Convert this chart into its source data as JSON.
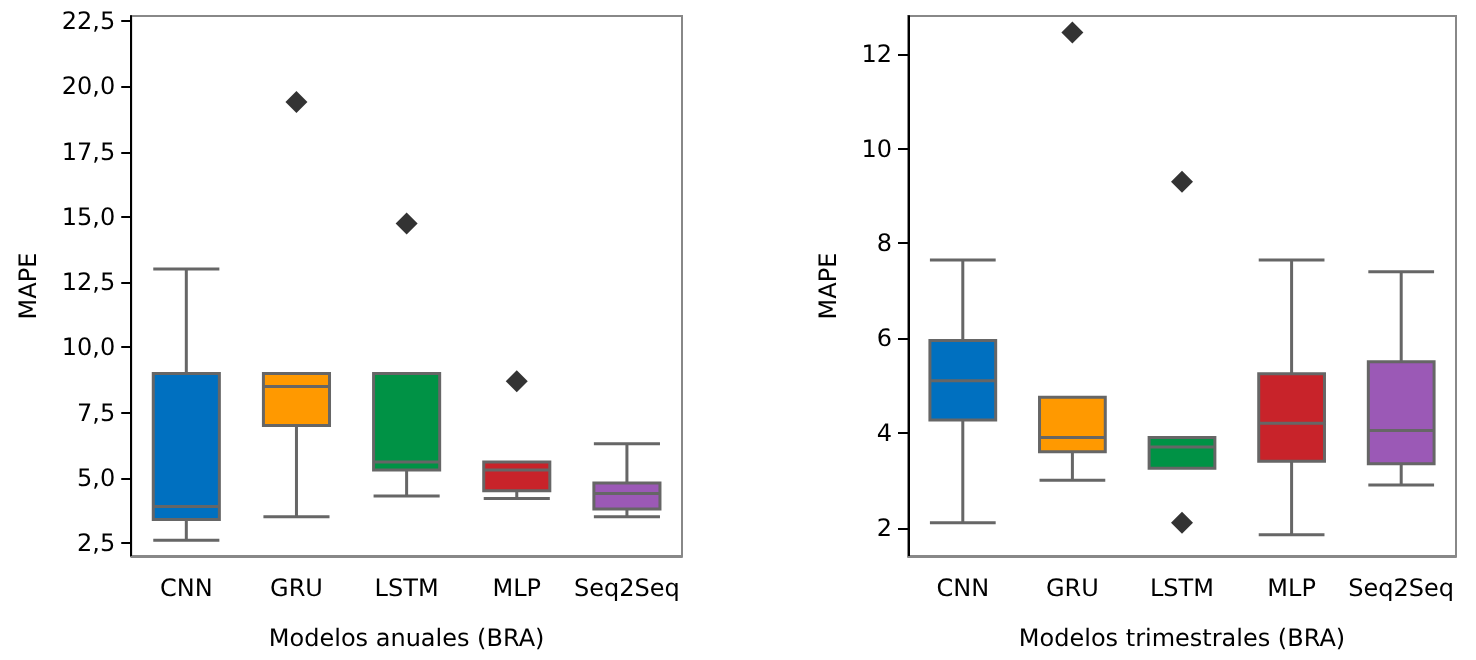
{
  "chart_data": [
    {
      "type": "box",
      "xlabel": "Modelos anuales (BRA)",
      "ylabel": "MAPE",
      "categories": [
        "CNN",
        "GRU",
        "LSTM",
        "MLP",
        "Seq2Seq"
      ],
      "colors": [
        "#0070c0",
        "#ff9900",
        "#009245",
        "#c8232a",
        "#9b59b6"
      ],
      "boxes": [
        {
          "low": 2.6,
          "q1": 3.4,
          "median": 3.9,
          "q3": 9.0,
          "high": 13.0
        },
        {
          "low": 3.5,
          "q1": 7.0,
          "median": 8.5,
          "q3": 9.0,
          "high": 9.0,
          "outliers": [
            19.4
          ]
        },
        {
          "low": 4.3,
          "q1": 5.3,
          "median": 5.6,
          "q3": 9.0,
          "high": 9.0,
          "outliers": [
            14.75
          ]
        },
        {
          "low": 4.2,
          "q1": 4.5,
          "median": 5.3,
          "q3": 5.6,
          "high": 5.6,
          "outliers": [
            8.7
          ]
        },
        {
          "low": 3.5,
          "q1": 3.8,
          "median": 4.4,
          "q3": 4.8,
          "high": 6.3
        }
      ],
      "ylim": [
        2.0,
        22.7
      ],
      "yticks": [
        {
          "value": 2.5,
          "label": "2,5"
        },
        {
          "value": 5,
          "label": "5,0"
        },
        {
          "value": 7.5,
          "label": "7,5"
        },
        {
          "value": 10,
          "label": "10,0"
        },
        {
          "value": 12.5,
          "label": "12,5"
        },
        {
          "value": 15,
          "label": "15,0"
        },
        {
          "value": 17.5,
          "label": "17,5"
        },
        {
          "value": 20,
          "label": "20,0"
        },
        {
          "value": 22.5,
          "label": "22,5"
        }
      ],
      "marker": "diamond",
      "grid": false
    },
    {
      "type": "box",
      "xlabel": "Modelos trimestrales (BRA)",
      "ylabel": "MAPE",
      "categories": [
        "CNN",
        "GRU",
        "LSTM",
        "MLP",
        "Seq2Seq"
      ],
      "colors": [
        "#0070c0",
        "#ff9900",
        "#009245",
        "#c8232a",
        "#9b59b6"
      ],
      "boxes": [
        {
          "low": 2.1,
          "q1": 4.27,
          "median": 5.1,
          "q3": 5.95,
          "high": 7.65
        },
        {
          "low": 3.0,
          "q1": 3.6,
          "median": 3.9,
          "q3": 4.75,
          "high": 4.75,
          "outliers": [
            12.45
          ]
        },
        {
          "low": 3.25,
          "q1": 3.25,
          "median": 3.7,
          "q3": 3.9,
          "high": 3.9,
          "outliers": [
            9.3,
            2.1
          ]
        },
        {
          "low": 1.85,
          "q1": 3.4,
          "median": 4.2,
          "q3": 5.25,
          "high": 7.65
        },
        {
          "low": 2.9,
          "q1": 3.35,
          "median": 4.05,
          "q3": 5.5,
          "high": 7.4
        }
      ],
      "ylim": [
        1.4,
        12.8
      ],
      "yticks": [
        2,
        4,
        6,
        8,
        10,
        12
      ],
      "marker": "diamond",
      "grid": false
    }
  ]
}
